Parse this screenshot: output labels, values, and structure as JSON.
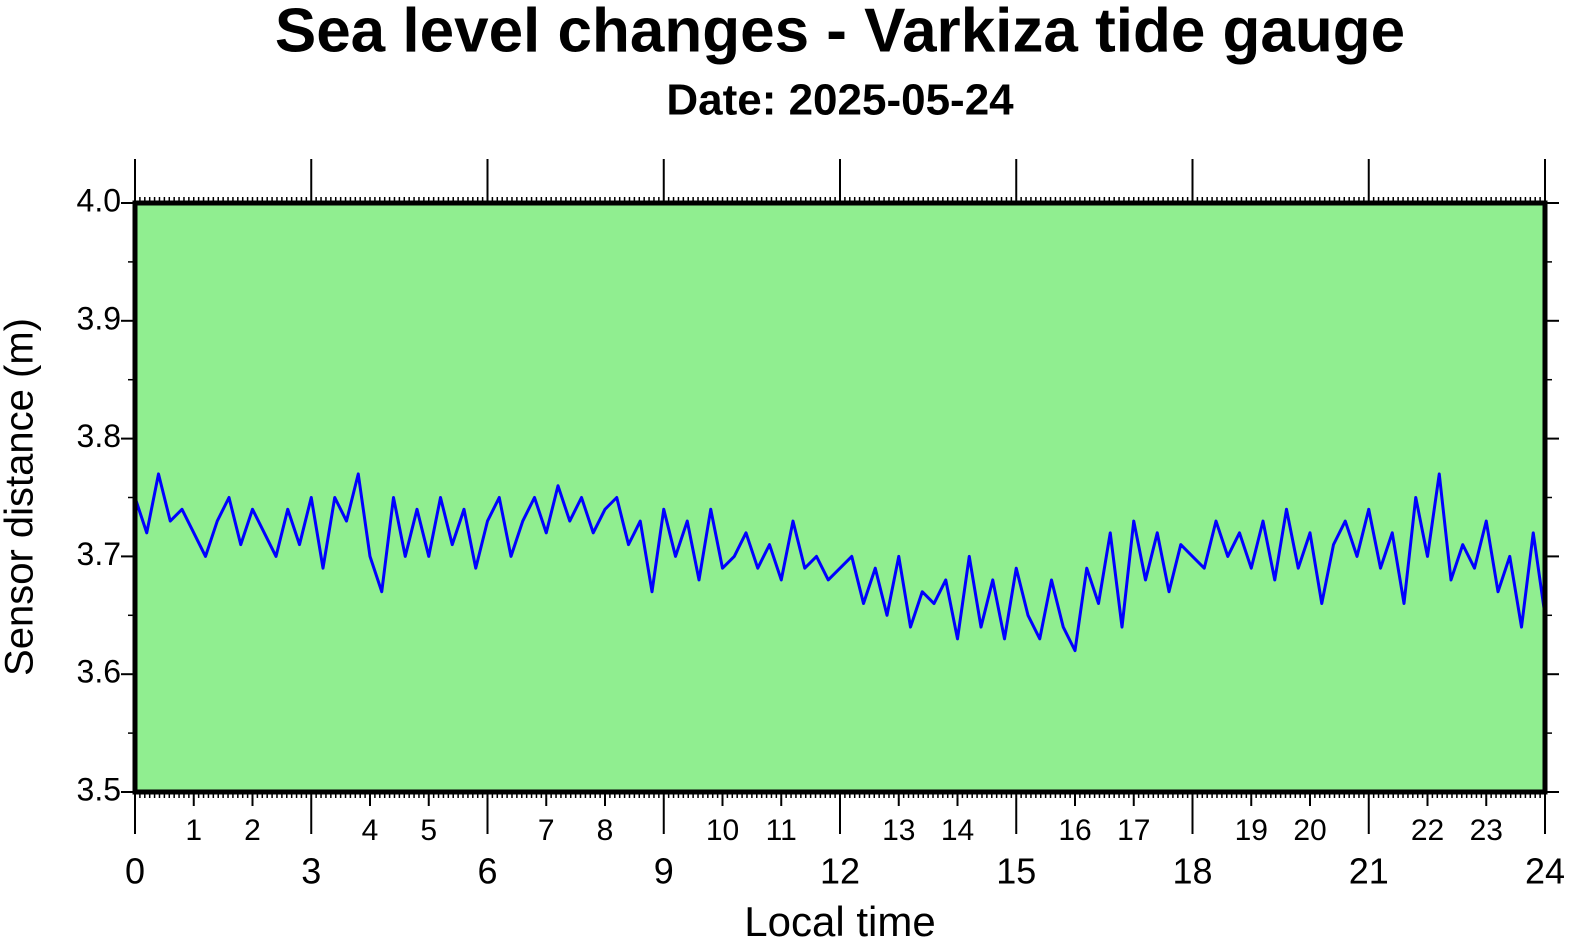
{
  "chart_data": {
    "type": "line",
    "title": "Sea level changes - Varkiza tide gauge",
    "subtitle": "Date: 2025-05-24",
    "x_label": "Local time",
    "y_label": "Sensor distance (m)",
    "xlim": [
      0,
      24
    ],
    "xticks": [
      0,
      3,
      6,
      9,
      12,
      15,
      18,
      21,
      24
    ],
    "xticks_minor": [
      1,
      2,
      4,
      5,
      7,
      8,
      10,
      11,
      13,
      14,
      16,
      17,
      19,
      20,
      22,
      23
    ],
    "ylim": [
      3.5,
      4.0
    ],
    "yticks": [
      3.5,
      3.6,
      3.7,
      3.8,
      3.9,
      {
        "value": 4,
        "label": "4.0"
      }
    ],
    "background": "#90ee90",
    "series": [
      {
        "color": "#0000ff",
        "x": [
          0,
          0.2,
          0.4,
          0.6,
          0.8,
          1,
          1.2,
          1.4,
          1.6,
          1.8,
          2,
          2.2,
          2.4,
          2.6,
          2.8,
          3,
          3.2,
          3.4,
          3.6,
          3.8,
          4,
          4.2,
          4.4,
          4.6,
          4.8,
          5,
          5.2,
          5.4,
          5.6,
          5.8,
          6,
          6.2,
          6.4,
          6.6,
          6.8,
          7,
          7.2,
          7.4,
          7.6,
          7.8,
          8,
          8.2,
          8.4,
          8.6,
          8.8,
          9,
          9.2,
          9.4,
          9.6,
          9.8,
          10,
          10.2,
          10.4,
          10.6,
          10.8,
          11,
          11.2,
          11.4,
          11.6,
          11.8,
          12,
          12.2,
          12.4,
          12.6,
          12.8,
          13,
          13.2,
          13.4,
          13.6,
          13.8,
          14,
          14.2,
          14.4,
          14.6,
          14.8,
          15,
          15.2,
          15.4,
          15.6,
          15.8,
          16,
          16.2,
          16.4,
          16.6,
          16.8,
          17,
          17.2,
          17.4,
          17.6,
          17.8,
          18,
          18.2,
          18.4,
          18.6,
          18.8,
          19,
          19.2,
          19.4,
          19.6,
          19.8,
          20,
          20.2,
          20.4,
          20.6,
          20.8,
          21,
          21.2,
          21.4,
          21.6,
          21.8,
          22,
          22.2,
          22.4,
          22.6,
          22.8,
          23,
          23.2,
          23.4,
          23.6,
          23.8,
          24
        ],
        "values": [
          3.75,
          3.72,
          3.77,
          3.73,
          3.74,
          3.72,
          3.7,
          3.73,
          3.75,
          3.71,
          3.74,
          3.72,
          3.7,
          3.74,
          3.71,
          3.75,
          3.69,
          3.75,
          3.73,
          3.77,
          3.7,
          3.67,
          3.75,
          3.7,
          3.74,
          3.7,
          3.75,
          3.71,
          3.74,
          3.69,
          3.73,
          3.75,
          3.7,
          3.73,
          3.75,
          3.72,
          3.76,
          3.73,
          3.75,
          3.72,
          3.74,
          3.75,
          3.71,
          3.73,
          3.67,
          3.74,
          3.7,
          3.73,
          3.68,
          3.74,
          3.69,
          3.7,
          3.72,
          3.69,
          3.71,
          3.68,
          3.73,
          3.69,
          3.7,
          3.68,
          3.69,
          3.7,
          3.66,
          3.69,
          3.65,
          3.7,
          3.64,
          3.67,
          3.66,
          3.68,
          3.63,
          3.7,
          3.64,
          3.68,
          3.63,
          3.69,
          3.65,
          3.63,
          3.68,
          3.64,
          3.62,
          3.69,
          3.66,
          3.72,
          3.64,
          3.73,
          3.68,
          3.72,
          3.67,
          3.71,
          3.7,
          3.69,
          3.73,
          3.7,
          3.72,
          3.69,
          3.73,
          3.68,
          3.74,
          3.69,
          3.72,
          3.66,
          3.71,
          3.73,
          3.7,
          3.74,
          3.69,
          3.72,
          3.66,
          3.75,
          3.7,
          3.77,
          3.68,
          3.71,
          3.69,
          3.73,
          3.67,
          3.7,
          3.64,
          3.72,
          3.65
        ]
      }
    ]
  }
}
